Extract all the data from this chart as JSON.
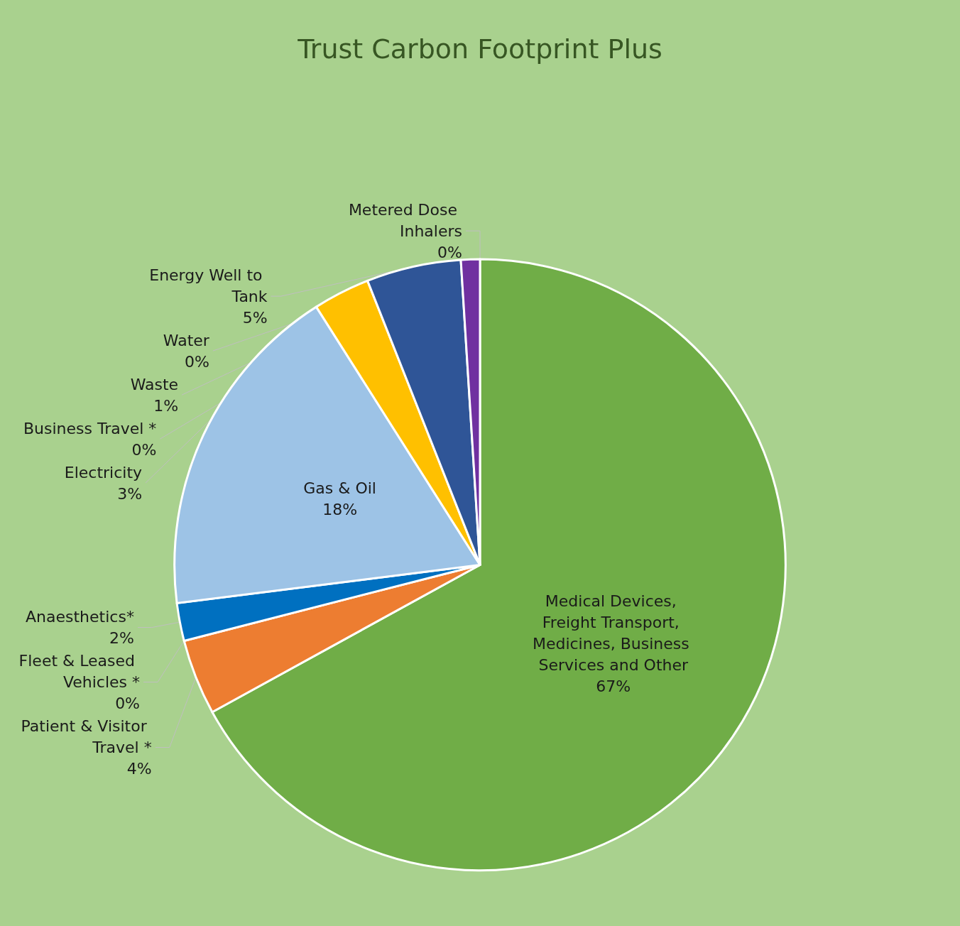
{
  "chart_data": {
    "type": "pie",
    "title": "Trust Carbon Footprint Plus",
    "categories": [
      "Medical Devices, Freight Transport, Medicines, Business Services and Other",
      "Patient & Visitor Travel *",
      "Fleet & Leased Vehicles *",
      "Anaesthetics*",
      "Gas & Oil",
      "Electricity",
      "Energy Well to Tank",
      "Business Travel *",
      "Waste",
      "Water",
      "Metered Dose Inhalers"
    ],
    "values": [
      67,
      4,
      0,
      2,
      18,
      3,
      5,
      0,
      1,
      0,
      0
    ],
    "colors": [
      "#70ad47",
      "#ed7d31",
      "#a5a5a5",
      "#0070c0",
      "#9dc3e6",
      "#ffc000",
      "#2f5597",
      "#548235",
      "#7030a0",
      "#264478",
      "#c55a11"
    ],
    "value_labels": [
      "67%",
      "4%",
      "0%",
      "2%",
      "18%",
      "3%",
      "5%",
      "0%",
      "1%",
      "0%",
      "0%"
    ],
    "legend": false
  }
}
